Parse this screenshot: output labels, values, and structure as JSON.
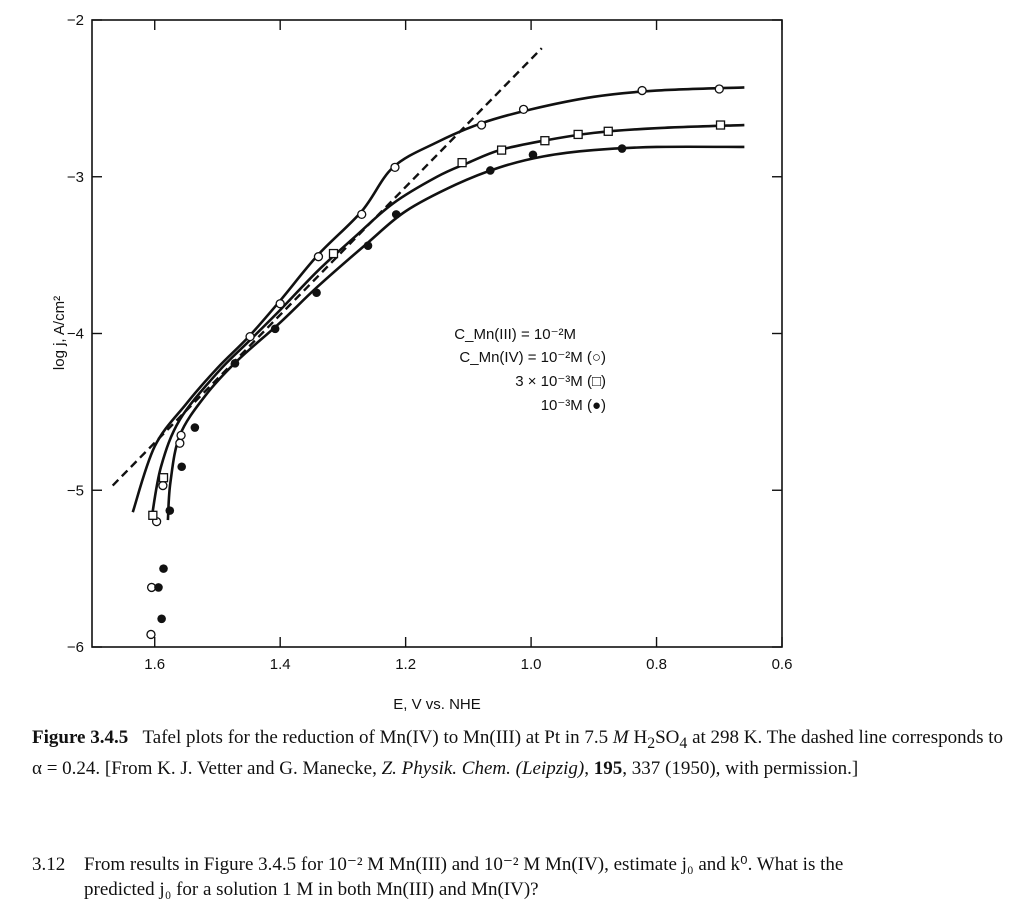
{
  "chart_data": {
    "type": "scatter",
    "xlabel": "E, V vs. NHE",
    "ylabel": "log j, A/cm²",
    "xlim": [
      1.7,
      0.6
    ],
    "ylim": [
      -6,
      -2
    ],
    "x_reversed": true,
    "xticks": [
      1.6,
      1.4,
      1.2,
      1.0,
      0.8,
      0.6
    ],
    "xtick_labels": [
      "1.6",
      "1.4",
      "1.2",
      "1.0",
      "0.8",
      "0.6"
    ],
    "yticks": [
      -2,
      -3,
      -4,
      -5,
      -6
    ],
    "ytick_labels": [
      "−2",
      "−3",
      "−4",
      "−5",
      "−6"
    ],
    "grid": false,
    "legend": {
      "placement": "center",
      "lines": [
        "C_Mn(III) = 10⁻²M",
        "C_Mn(IV) = 10⁻²M (○)",
        "3 × 10⁻³M (□)",
        "10⁻³M (●)"
      ]
    },
    "series": [
      {
        "marker": "open-circle",
        "points": [
          [
            1.606,
            -5.92
          ],
          [
            1.605,
            -5.62
          ],
          [
            1.597,
            -5.2
          ],
          [
            1.587,
            -4.97
          ],
          [
            1.56,
            -4.7
          ],
          [
            1.558,
            -4.65
          ],
          [
            1.448,
            -4.02
          ],
          [
            1.4,
            -3.81
          ],
          [
            1.339,
            -3.51
          ],
          [
            1.27,
            -3.24
          ],
          [
            1.217,
            -2.94
          ],
          [
            1.079,
            -2.67
          ],
          [
            1.012,
            -2.57
          ],
          [
            0.823,
            -2.45
          ],
          [
            0.7,
            -2.44
          ]
        ],
        "curve": [
          [
            1.635,
            -5.14
          ],
          [
            1.6,
            -4.72
          ],
          [
            1.55,
            -4.45
          ],
          [
            1.5,
            -4.22
          ],
          [
            1.45,
            -4.02
          ],
          [
            1.4,
            -3.79
          ],
          [
            1.34,
            -3.5
          ],
          [
            1.27,
            -3.22
          ],
          [
            1.22,
            -2.94
          ],
          [
            1.15,
            -2.78
          ],
          [
            1.08,
            -2.66
          ],
          [
            1.0,
            -2.57
          ],
          [
            0.9,
            -2.49
          ],
          [
            0.8,
            -2.45
          ],
          [
            0.66,
            -2.43
          ]
        ]
      },
      {
        "marker": "open-square",
        "points": [
          [
            1.603,
            -5.16
          ],
          [
            1.586,
            -4.92
          ],
          [
            1.315,
            -3.49
          ],
          [
            1.11,
            -2.91
          ],
          [
            1.047,
            -2.83
          ],
          [
            0.978,
            -2.77
          ],
          [
            0.925,
            -2.73
          ],
          [
            0.877,
            -2.71
          ],
          [
            0.698,
            -2.67
          ]
        ],
        "curve": [
          [
            1.605,
            -5.18
          ],
          [
            1.59,
            -4.85
          ],
          [
            1.56,
            -4.55
          ],
          [
            1.5,
            -4.25
          ],
          [
            1.45,
            -4.05
          ],
          [
            1.4,
            -3.85
          ],
          [
            1.34,
            -3.6
          ],
          [
            1.28,
            -3.38
          ],
          [
            1.22,
            -3.17
          ],
          [
            1.15,
            -3.0
          ],
          [
            1.1,
            -2.91
          ],
          [
            1.05,
            -2.83
          ],
          [
            0.98,
            -2.77
          ],
          [
            0.9,
            -2.72
          ],
          [
            0.8,
            -2.69
          ],
          [
            0.66,
            -2.67
          ]
        ]
      },
      {
        "marker": "filled-circle",
        "points": [
          [
            1.586,
            -5.5
          ],
          [
            1.594,
            -5.62
          ],
          [
            1.589,
            -5.82
          ],
          [
            1.576,
            -5.13
          ],
          [
            1.557,
            -4.85
          ],
          [
            1.536,
            -4.6
          ],
          [
            1.472,
            -4.19
          ],
          [
            1.408,
            -3.97
          ],
          [
            1.342,
            -3.74
          ],
          [
            1.26,
            -3.44
          ],
          [
            1.215,
            -3.24
          ],
          [
            1.065,
            -2.96
          ],
          [
            0.997,
            -2.86
          ],
          [
            0.855,
            -2.82
          ]
        ],
        "curve": [
          [
            1.579,
            -5.19
          ],
          [
            1.575,
            -4.95
          ],
          [
            1.56,
            -4.65
          ],
          [
            1.52,
            -4.4
          ],
          [
            1.47,
            -4.18
          ],
          [
            1.4,
            -3.93
          ],
          [
            1.34,
            -3.7
          ],
          [
            1.26,
            -3.42
          ],
          [
            1.2,
            -3.22
          ],
          [
            1.12,
            -3.05
          ],
          [
            1.05,
            -2.94
          ],
          [
            0.98,
            -2.87
          ],
          [
            0.9,
            -2.83
          ],
          [
            0.8,
            -2.81
          ],
          [
            0.66,
            -2.81
          ]
        ]
      }
    ],
    "dashed_line": {
      "alpha": 0.24,
      "points": [
        [
          1.667,
          -4.97
        ],
        [
          0.983,
          -2.18
        ]
      ]
    }
  },
  "caption": {
    "label": "Figure 3.4.5",
    "text1": "Tafel plots for the reduction of Mn(IV) to Mn(III) at Pt in 7.5 ",
    "text_M": "M",
    "text2": " H",
    "sub2": "2",
    "text3": "SO",
    "sub4": "4",
    "text4": " at 298 K. The dashed line corresponds to α = 0.24. [From K. J. Vetter and G. Manecke, ",
    "journal": "Z. Physik. Chem. (Leipzig)",
    "text5": ", ",
    "volume": "195",
    "text6": ", 337 (1950), with permission.]"
  },
  "problem": {
    "number": "3.12",
    "line1": "From results in Figure 3.4.5 for 10⁻² M Mn(III) and 10⁻² M Mn(IV), estimate j₀ and k⁰. What is the",
    "line2": "predicted j₀ for a solution 1 M in both Mn(III) and Mn(IV)?"
  }
}
